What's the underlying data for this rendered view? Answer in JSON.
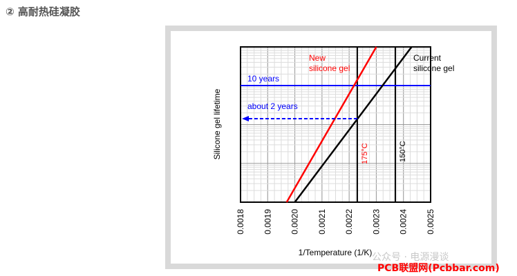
{
  "heading": "② 高耐热硅凝胶",
  "chart_data": {
    "type": "line",
    "xlabel": "1/Temperature (1/K)",
    "ylabel": "Silicone gel lifetime",
    "x_ticks": [
      "0.0018",
      "0.0019",
      "0.0020",
      "0.0021",
      "0.0022",
      "0.0023",
      "0.0024",
      "0.0025"
    ],
    "xlim": [
      0.0018,
      0.0025
    ],
    "y_scale": "log",
    "grid": true,
    "series": [
      {
        "name_lines": [
          "New",
          "silicone gel"
        ],
        "color": "#ff0000",
        "x": [
          0.00197,
          0.0023
        ]
      },
      {
        "name_lines": [
          "Current",
          "silicone gel"
        ],
        "color": "#000000",
        "x": [
          0.002,
          0.00243
        ]
      }
    ],
    "hlines": [
      {
        "label": "10 years",
        "color": "#0000ff",
        "style": "solid"
      },
      {
        "label": "about 2 years",
        "color": "#0000ff",
        "style": "dashed"
      }
    ],
    "vlines": [
      {
        "label": "175°C",
        "x": 0.00223,
        "color": "#ff0000"
      },
      {
        "label": "150°C",
        "x": 0.00237,
        "color": "#000000"
      }
    ]
  },
  "watermark": "公众号 · 电源漫谈",
  "brand": "PCB联盟网(Pcbbar.com)",
  "brand_color": "#ff0000"
}
